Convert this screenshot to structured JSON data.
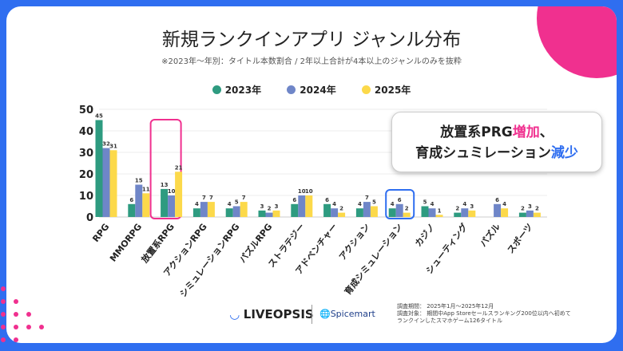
{
  "title": "新規ランクインアプリ ジャンル分布",
  "subtitle": "※2023年〜年別：タイトル本数割合 / 2年以上合計が4本以上のジャンルのみを抜粋",
  "callout": {
    "line1_a": "放置系PRG",
    "line1_b": "増加",
    "line1_c": "、",
    "line2_a": "育成シュミレーション",
    "line2_b": "減少"
  },
  "footer": {
    "logo": "LIVEOPSIS",
    "partner": "Spicemart",
    "notes": [
      "調査期間： 2025年1月〜2025年12月",
      "調査対象： 期間中App Storeセールスランキング200位以内へ初めて",
      "ランクインしたスマホゲーム126タイトル"
    ]
  },
  "colors": {
    "2023": "#2e9b80",
    "2024": "#6f86c8",
    "2025": "#fcd94a",
    "highlight_pink": "#f0308f",
    "highlight_blue": "#2f6ef0",
    "frame": "#2f6ef0"
  },
  "chart_data": {
    "type": "bar",
    "categories": [
      "RPG",
      "MMORPG",
      "放置系RPG",
      "アクションRPG",
      "シミュレーションRPG",
      "パズルRPG",
      "ストラテジー",
      "アドベンチャー",
      "アクション",
      "育成シミュレーション",
      "カジノ",
      "シューティング",
      "パズル",
      "スポーツ"
    ],
    "series": [
      {
        "name": "2023年",
        "values": [
          45,
          6,
          13,
          4,
          4,
          3,
          6,
          6,
          4,
          4,
          5,
          2,
          0,
          2
        ]
      },
      {
        "name": "2024年",
        "values": [
          32,
          15,
          10,
          7,
          5,
          2,
          10,
          4,
          7,
          6,
          4,
          4,
          6,
          3
        ]
      },
      {
        "name": "2025年",
        "values": [
          31,
          11,
          21,
          7,
          7,
          3,
          10,
          2,
          5,
          2,
          1,
          3,
          4,
          2
        ]
      }
    ],
    "yticks": [
      0,
      10,
      20,
      30,
      40,
      50
    ],
    "ylim": [
      0,
      50
    ],
    "grid": true,
    "legend": "top",
    "highlighted": {
      "pink": "放置系RPG",
      "blue": "育成シミュレーション"
    }
  }
}
